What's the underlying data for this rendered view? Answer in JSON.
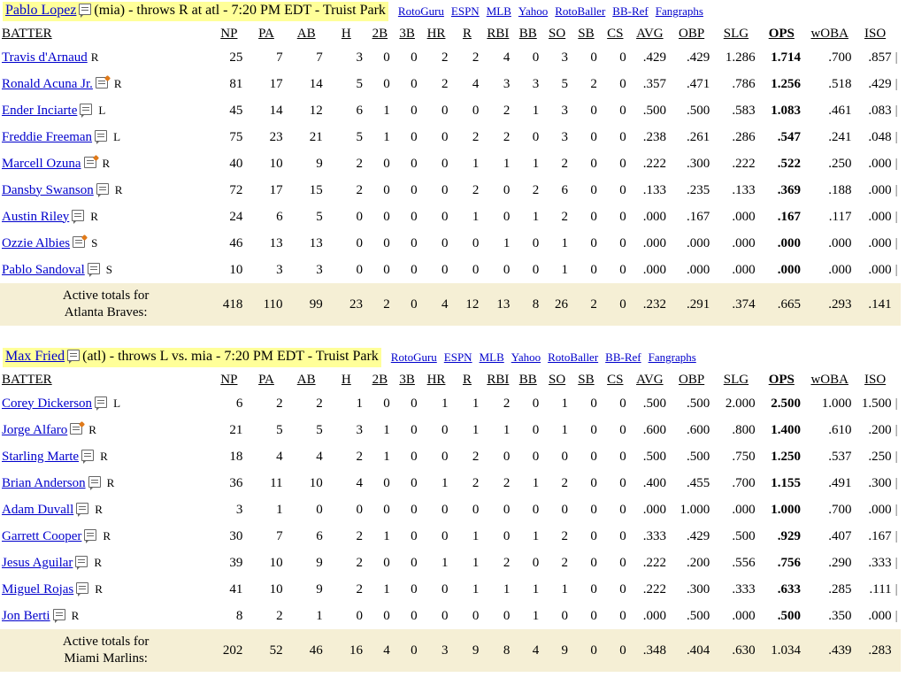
{
  "columns": [
    "BATTER",
    "NP",
    "PA",
    "AB",
    "H",
    "2B",
    "3B",
    "HR",
    "R",
    "RBI",
    "BB",
    "SO",
    "SB",
    "CS",
    "AVG",
    "OBP",
    "SLG",
    "OPS",
    "wOBA",
    "ISO"
  ],
  "links": [
    "RotoGuru",
    "ESPN",
    "MLB",
    "Yahoo",
    "RotoBaller",
    "BB-Ref",
    "Fangraphs"
  ],
  "games": [
    {
      "pitcher_name": "Pablo Lopez",
      "pitcher_info": "(mia) - throws R at atl - 7:20 PM EDT - Truist Park",
      "batters": [
        {
          "name": "Travis d'Arnaud",
          "icon": "none",
          "hand": "R",
          "stats": [
            "25",
            "7",
            "7",
            "3",
            "0",
            "0",
            "2",
            "2",
            "4",
            "0",
            "3",
            "0",
            "0",
            ".429",
            ".429",
            "1.286",
            "1.714",
            ".700",
            ".857"
          ]
        },
        {
          "name": "Ronald Acuna Jr.",
          "icon": "note-edit",
          "hand": "R",
          "stats": [
            "81",
            "17",
            "14",
            "5",
            "0",
            "0",
            "2",
            "4",
            "3",
            "3",
            "5",
            "2",
            "0",
            ".357",
            ".471",
            ".786",
            "1.256",
            ".518",
            ".429"
          ]
        },
        {
          "name": "Ender Inciarte",
          "icon": "note",
          "hand": "L",
          "stats": [
            "45",
            "14",
            "12",
            "6",
            "1",
            "0",
            "0",
            "0",
            "2",
            "1",
            "3",
            "0",
            "0",
            ".500",
            ".500",
            ".583",
            "1.083",
            ".461",
            ".083"
          ]
        },
        {
          "name": "Freddie Freeman",
          "icon": "note",
          "hand": "L",
          "stats": [
            "75",
            "23",
            "21",
            "5",
            "1",
            "0",
            "0",
            "2",
            "2",
            "0",
            "3",
            "0",
            "0",
            ".238",
            ".261",
            ".286",
            ".547",
            ".241",
            ".048"
          ]
        },
        {
          "name": "Marcell Ozuna",
          "icon": "note-edit",
          "hand": "R",
          "stats": [
            "40",
            "10",
            "9",
            "2",
            "0",
            "0",
            "0",
            "1",
            "1",
            "1",
            "2",
            "0",
            "0",
            ".222",
            ".300",
            ".222",
            ".522",
            ".250",
            ".000"
          ]
        },
        {
          "name": "Dansby Swanson",
          "icon": "note",
          "hand": "R",
          "stats": [
            "72",
            "17",
            "15",
            "2",
            "0",
            "0",
            "0",
            "2",
            "0",
            "2",
            "6",
            "0",
            "0",
            ".133",
            ".235",
            ".133",
            ".369",
            ".188",
            ".000"
          ]
        },
        {
          "name": "Austin Riley",
          "icon": "note",
          "hand": "R",
          "stats": [
            "24",
            "6",
            "5",
            "0",
            "0",
            "0",
            "0",
            "1",
            "0",
            "1",
            "2",
            "0",
            "0",
            ".000",
            ".167",
            ".000",
            ".167",
            ".117",
            ".000"
          ]
        },
        {
          "name": "Ozzie Albies",
          "icon": "note-edit",
          "hand": "S",
          "stats": [
            "46",
            "13",
            "13",
            "0",
            "0",
            "0",
            "0",
            "0",
            "1",
            "0",
            "1",
            "0",
            "0",
            ".000",
            ".000",
            ".000",
            ".000",
            ".000",
            ".000"
          ]
        },
        {
          "name": "Pablo Sandoval",
          "icon": "note",
          "hand": "S",
          "stats": [
            "10",
            "3",
            "3",
            "0",
            "0",
            "0",
            "0",
            "0",
            "0",
            "0",
            "1",
            "0",
            "0",
            ".000",
            ".000",
            ".000",
            ".000",
            ".000",
            ".000"
          ]
        }
      ],
      "totals_label_1": "Active totals for",
      "totals_label_2": "Atlanta Braves:",
      "totals": [
        "418",
        "110",
        "99",
        "23",
        "2",
        "0",
        "4",
        "12",
        "13",
        "8",
        "26",
        "2",
        "0",
        ".232",
        ".291",
        ".374",
        ".665",
        ".293",
        ".141"
      ]
    },
    {
      "pitcher_name": "Max Fried",
      "pitcher_info": "(atl) - throws L vs. mia - 7:20 PM EDT - Truist Park",
      "batters": [
        {
          "name": "Corey Dickerson",
          "icon": "note",
          "hand": "L",
          "stats": [
            "6",
            "2",
            "2",
            "1",
            "0",
            "0",
            "1",
            "1",
            "2",
            "0",
            "1",
            "0",
            "0",
            ".500",
            ".500",
            "2.000",
            "2.500",
            "1.000",
            "1.500"
          ]
        },
        {
          "name": "Jorge Alfaro",
          "icon": "note-edit",
          "hand": "R",
          "stats": [
            "21",
            "5",
            "5",
            "3",
            "1",
            "0",
            "0",
            "1",
            "1",
            "0",
            "1",
            "0",
            "0",
            ".600",
            ".600",
            ".800",
            "1.400",
            ".610",
            ".200"
          ]
        },
        {
          "name": "Starling Marte",
          "icon": "note",
          "hand": "R",
          "stats": [
            "18",
            "4",
            "4",
            "2",
            "1",
            "0",
            "0",
            "2",
            "0",
            "0",
            "0",
            "0",
            "0",
            ".500",
            ".500",
            ".750",
            "1.250",
            ".537",
            ".250"
          ]
        },
        {
          "name": "Brian Anderson",
          "icon": "note",
          "hand": "R",
          "stats": [
            "36",
            "11",
            "10",
            "4",
            "0",
            "0",
            "1",
            "2",
            "2",
            "1",
            "2",
            "0",
            "0",
            ".400",
            ".455",
            ".700",
            "1.155",
            ".491",
            ".300"
          ]
        },
        {
          "name": "Adam Duvall",
          "icon": "note",
          "hand": "R",
          "stats": [
            "3",
            "1",
            "0",
            "0",
            "0",
            "0",
            "0",
            "0",
            "0",
            "0",
            "0",
            "0",
            "0",
            ".000",
            "1.000",
            ".000",
            "1.000",
            ".700",
            ".000"
          ]
        },
        {
          "name": "Garrett Cooper",
          "icon": "note",
          "hand": "R",
          "stats": [
            "30",
            "7",
            "6",
            "2",
            "1",
            "0",
            "0",
            "1",
            "0",
            "1",
            "2",
            "0",
            "0",
            ".333",
            ".429",
            ".500",
            ".929",
            ".407",
            ".167"
          ]
        },
        {
          "name": "Jesus Aguilar",
          "icon": "note",
          "hand": "R",
          "stats": [
            "39",
            "10",
            "9",
            "2",
            "0",
            "0",
            "1",
            "1",
            "2",
            "0",
            "2",
            "0",
            "0",
            ".222",
            ".200",
            ".556",
            ".756",
            ".290",
            ".333"
          ]
        },
        {
          "name": "Miguel Rojas",
          "icon": "note",
          "hand": "R",
          "stats": [
            "41",
            "10",
            "9",
            "2",
            "1",
            "0",
            "0",
            "1",
            "1",
            "1",
            "1",
            "0",
            "0",
            ".222",
            ".300",
            ".333",
            ".633",
            ".285",
            ".111"
          ]
        },
        {
          "name": "Jon Berti",
          "icon": "note",
          "hand": "R",
          "stats": [
            "8",
            "2",
            "1",
            "0",
            "0",
            "0",
            "0",
            "0",
            "0",
            "1",
            "0",
            "0",
            "0",
            ".000",
            ".500",
            ".000",
            ".500",
            ".350",
            ".000"
          ]
        }
      ],
      "totals_label_1": "Active totals for",
      "totals_label_2": "Miami Marlins:",
      "totals": [
        "202",
        "52",
        "46",
        "16",
        "4",
        "0",
        "3",
        "9",
        "8",
        "4",
        "9",
        "0",
        "0",
        ".348",
        ".404",
        ".630",
        "1.034",
        ".439",
        ".283"
      ]
    }
  ],
  "colors": {
    "highlight": "#ffff99",
    "totals_bg": "#f5efd5",
    "link": "#0000cc"
  },
  "icons": [
    "note-icon",
    "note-edit-icon"
  ]
}
